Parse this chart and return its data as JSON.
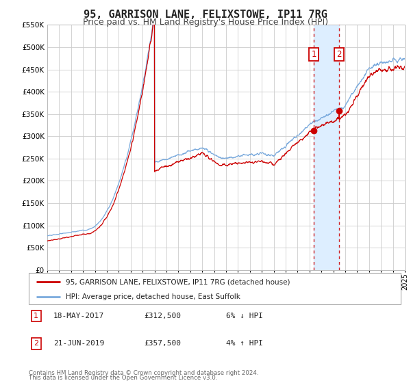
{
  "title": "95, GARRISON LANE, FELIXSTOWE, IP11 7RG",
  "subtitle": "Price paid vs. HM Land Registry's House Price Index (HPI)",
  "legend_line1": "95, GARRISON LANE, FELIXSTOWE, IP11 7RG (detached house)",
  "legend_line2": "HPI: Average price, detached house, East Suffolk",
  "transaction1_label": "1",
  "transaction2_label": "2",
  "transaction1_date": "18-MAY-2017",
  "transaction1_price": 312500,
  "transaction1_price_str": "£312,500",
  "transaction1_hpi": "6% ↓ HPI",
  "transaction2_date": "21-JUN-2019",
  "transaction2_price": 357500,
  "transaction2_price_str": "£357,500",
  "transaction2_hpi": "4% ↑ HPI",
  "footer_line1": "Contains HM Land Registry data © Crown copyright and database right 2024.",
  "footer_line2": "This data is licensed under the Open Government Licence v3.0.",
  "xmin": 1995.0,
  "xmax": 2025.0,
  "ymin": 0,
  "ymax": 550000,
  "yticks": [
    0,
    50000,
    100000,
    150000,
    200000,
    250000,
    300000,
    350000,
    400000,
    450000,
    500000,
    550000
  ],
  "ytick_labels": [
    "£0",
    "£50K",
    "£100K",
    "£150K",
    "£200K",
    "£250K",
    "£300K",
    "£350K",
    "£400K",
    "£450K",
    "£500K",
    "£550K"
  ],
  "red_color": "#cc0000",
  "blue_color": "#7aaadd",
  "background_color": "#ffffff",
  "grid_color": "#cccccc",
  "highlight_color": "#ddeeff",
  "transaction1_x": 2017.38,
  "transaction2_x": 2019.47,
  "transaction1_y": 312500,
  "transaction2_y": 357500,
  "title_fontsize": 11,
  "subtitle_fontsize": 9
}
